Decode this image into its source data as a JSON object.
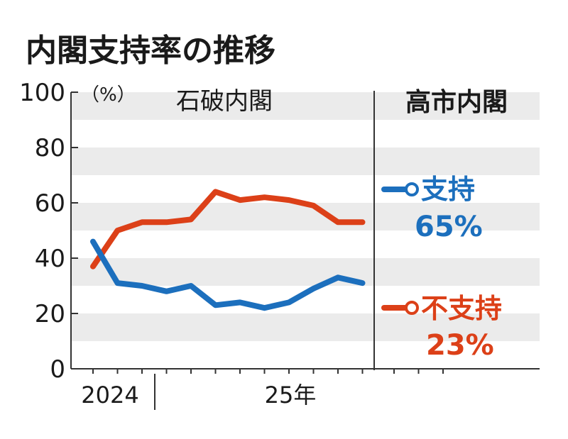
{
  "chart_data": {
    "type": "line",
    "title": "内閣支持率の推移",
    "ylabel": "（%）",
    "ylim": [
      0,
      100
    ],
    "yticks": [
      0,
      20,
      40,
      60,
      80,
      100
    ],
    "ytick_labels": [
      "0",
      "20",
      "40",
      "60",
      "80",
      "100"
    ],
    "xtick_labels": [
      "2024",
      "25年"
    ],
    "periods": [
      "石破内閣",
      "高市内閣"
    ],
    "series": [
      {
        "name": "支持",
        "color": "#1c6fbd",
        "values": [
          46,
          31,
          30,
          28,
          30,
          23,
          24,
          22,
          24,
          29,
          33,
          31
        ],
        "latest_label": "65%"
      },
      {
        "name": "不支持",
        "color": "#dc4018",
        "values": [
          37,
          50,
          53,
          53,
          54,
          64,
          61,
          62,
          61,
          59,
          53,
          53
        ],
        "latest_label": "23%"
      }
    ]
  }
}
